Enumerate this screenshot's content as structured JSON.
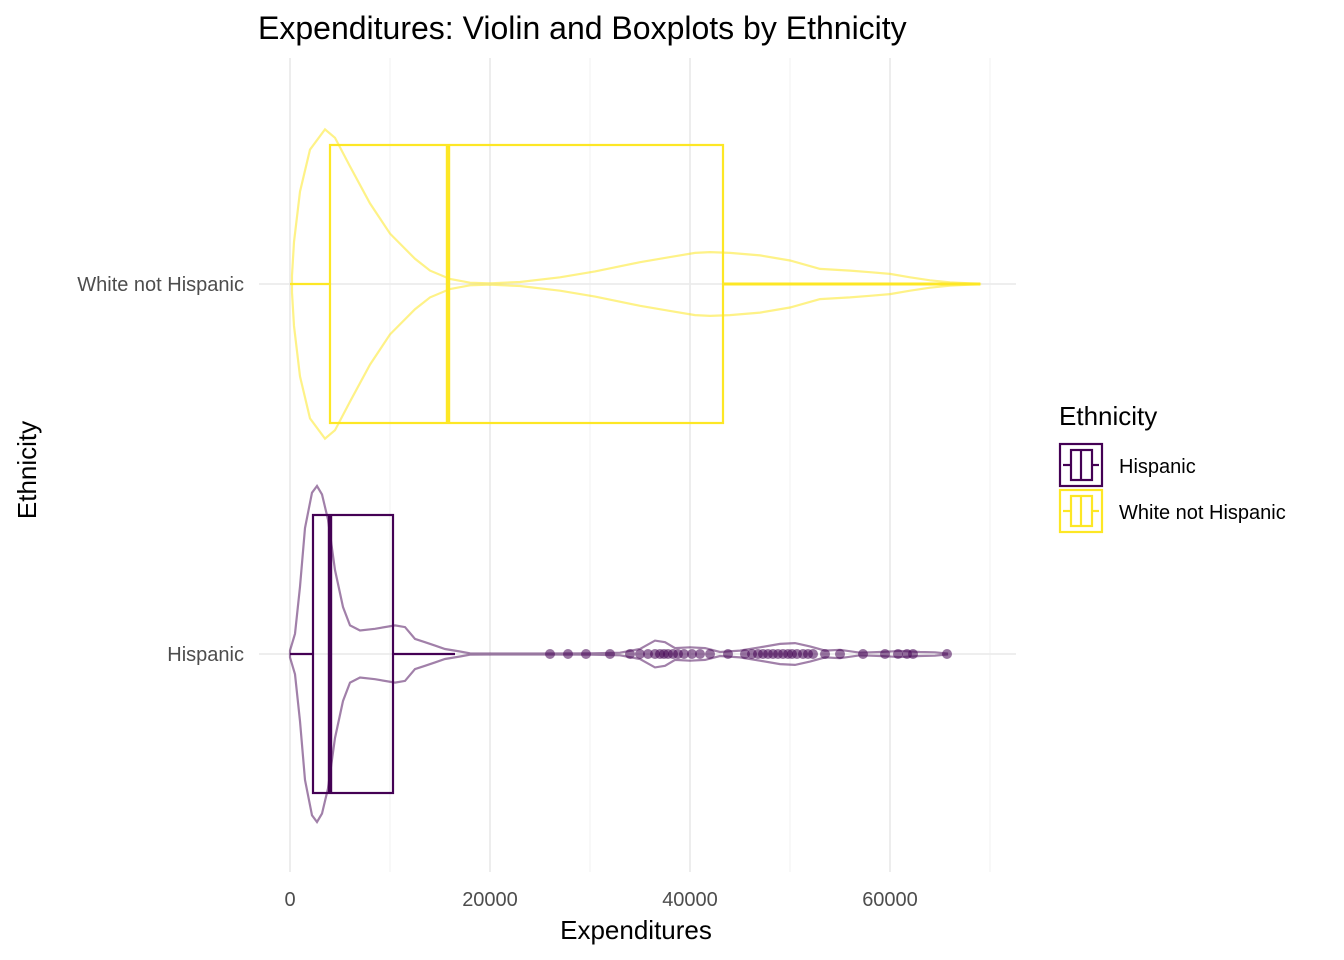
{
  "chart_data": {
    "type": "violin-box",
    "title": "Expenditures: Violin and Boxplots by Ethnicity",
    "xlabel": "Expenditures",
    "ylabel": "Ethnicity",
    "xlim": [
      -1500,
      72500
    ],
    "x_ticks": [
      0,
      20000,
      40000,
      60000
    ],
    "x_tick_labels": [
      "0",
      "20000",
      "40000",
      "60000"
    ],
    "grid": true,
    "legend": {
      "title": "Ethnicity",
      "placement": "right",
      "entries": [
        "Hispanic",
        "White not Hispanic"
      ]
    },
    "series": [
      {
        "name": "Hispanic",
        "color": "#440154",
        "box": {
          "whisker_low": 0,
          "q1": 2300,
          "median": 4000,
          "q3": 10300,
          "whisker_high": 16500
        },
        "outliers": [
          26000,
          27800,
          29600,
          32000,
          34000,
          35000,
          35800,
          36500,
          37000,
          37400,
          37800,
          38300,
          38800,
          39400,
          40200,
          41000,
          42000,
          43800,
          45500,
          46200,
          46800,
          47300,
          47800,
          48300,
          48800,
          49300,
          49800,
          50200,
          50700,
          51300,
          51800,
          52300,
          53500,
          55000,
          57300,
          59500,
          60800,
          61700,
          62300,
          65700
        ],
        "violin_density": [
          [
            0,
            0.02
          ],
          [
            500,
            0.12
          ],
          [
            1000,
            0.4
          ],
          [
            1500,
            0.75
          ],
          [
            2200,
            0.96
          ],
          [
            2700,
            1.0
          ],
          [
            3200,
            0.95
          ],
          [
            3800,
            0.8
          ],
          [
            4500,
            0.5
          ],
          [
            5300,
            0.28
          ],
          [
            6000,
            0.17
          ],
          [
            7000,
            0.14
          ],
          [
            8500,
            0.15
          ],
          [
            10500,
            0.17
          ],
          [
            11500,
            0.16
          ],
          [
            12500,
            0.09
          ],
          [
            13500,
            0.07
          ],
          [
            14500,
            0.05
          ],
          [
            15500,
            0.03
          ],
          [
            17000,
            0.015
          ],
          [
            18000,
            0.004
          ],
          [
            20000,
            0.003
          ],
          [
            25000,
            0.003
          ],
          [
            30000,
            0.004
          ],
          [
            33000,
            0.008
          ],
          [
            35000,
            0.03
          ],
          [
            36500,
            0.08
          ],
          [
            37500,
            0.07
          ],
          [
            38500,
            0.035
          ],
          [
            40000,
            0.04
          ],
          [
            41500,
            0.035
          ],
          [
            43000,
            0.012
          ],
          [
            45000,
            0.02
          ],
          [
            47000,
            0.04
          ],
          [
            49000,
            0.06
          ],
          [
            50500,
            0.065
          ],
          [
            52000,
            0.045
          ],
          [
            53500,
            0.02
          ],
          [
            55000,
            0.025
          ],
          [
            57000,
            0.008
          ],
          [
            59000,
            0.012
          ],
          [
            61000,
            0.018
          ],
          [
            63000,
            0.012
          ],
          [
            64500,
            0.01
          ],
          [
            65700,
            0.003
          ]
        ]
      },
      {
        "name": "White not Hispanic",
        "color": "#fde725",
        "box": {
          "whisker_low": 0,
          "q1": 4000,
          "median": 15800,
          "q3": 43300,
          "whisker_high": 69000
        },
        "outliers": [],
        "violin_density": [
          [
            200,
            0.05
          ],
          [
            400,
            0.25
          ],
          [
            1000,
            0.55
          ],
          [
            2000,
            0.8
          ],
          [
            3500,
            0.92
          ],
          [
            4500,
            0.87
          ],
          [
            6000,
            0.7
          ],
          [
            8000,
            0.48
          ],
          [
            10000,
            0.3
          ],
          [
            12500,
            0.15
          ],
          [
            14000,
            0.08
          ],
          [
            16000,
            0.03
          ],
          [
            18000,
            0.008
          ],
          [
            20000,
            0.004
          ],
          [
            23000,
            0.012
          ],
          [
            27000,
            0.04
          ],
          [
            30500,
            0.075
          ],
          [
            35000,
            0.13
          ],
          [
            38000,
            0.16
          ],
          [
            40500,
            0.185
          ],
          [
            42000,
            0.19
          ],
          [
            44000,
            0.185
          ],
          [
            47000,
            0.17
          ],
          [
            50000,
            0.14
          ],
          [
            53000,
            0.09
          ],
          [
            56000,
            0.08
          ],
          [
            58000,
            0.07
          ],
          [
            60000,
            0.06
          ],
          [
            62000,
            0.04
          ],
          [
            64000,
            0.022
          ],
          [
            66000,
            0.01
          ],
          [
            68000,
            0.004
          ],
          [
            69000,
            0.002
          ]
        ]
      }
    ]
  }
}
